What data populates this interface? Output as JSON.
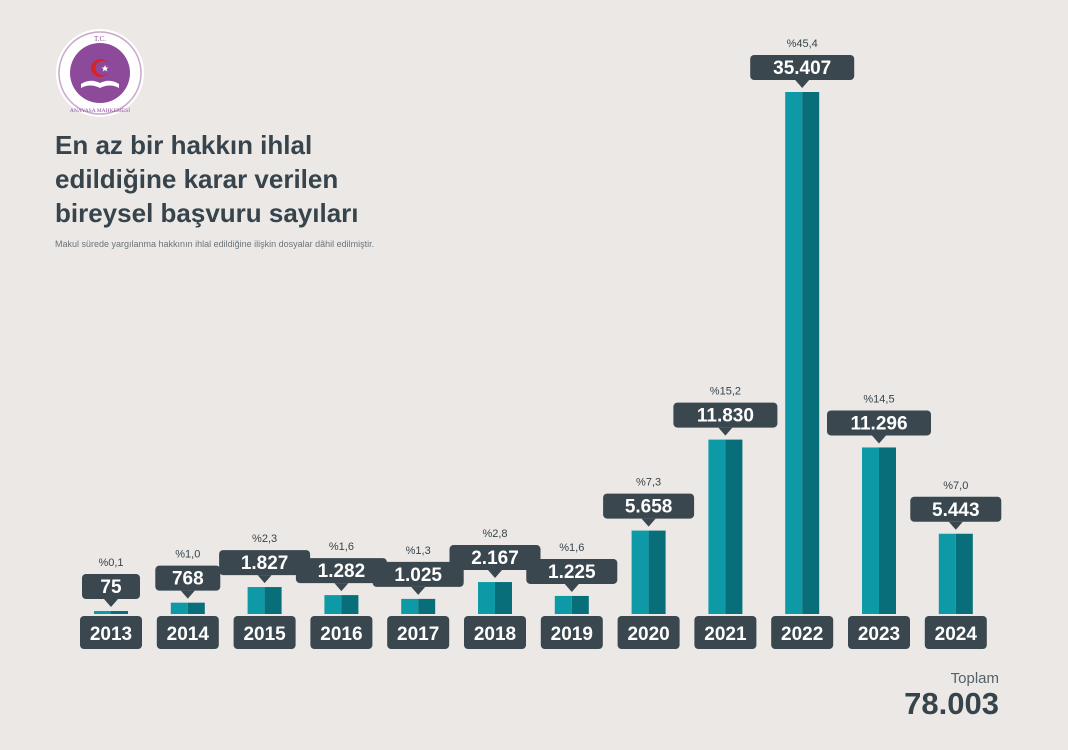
{
  "logo": {
    "icon": "anayasa-mahkemesi-seal",
    "text_top": "T.C.",
    "text_bottom": "ANAYASA MAHKEMESİ",
    "colors": {
      "ring": "#c9a7c9",
      "inner": "#8d4a9a",
      "book": "#ffffff",
      "crescent": "#d6232a"
    }
  },
  "title": "En az bir hakkın ihlal\nedildiğine karar verilen\nbireysel başvuru sayıları",
  "subtitle": "Makul sürede yargılanma hakkının ihlal edildiğine ilişkin dosyalar dâhil edilmiştir.",
  "total": {
    "label": "Toplam",
    "value": "78.003"
  },
  "colors": {
    "background": "#ebe8e6",
    "bar_light": "#0d9aa6",
    "bar_dark": "#086f7a",
    "label_box": "#3a474f",
    "label_text": "#ffffff",
    "pct_text": "#37444c"
  },
  "chart_data": {
    "type": "bar",
    "categories": [
      "2013",
      "2014",
      "2015",
      "2016",
      "2017",
      "2018",
      "2019",
      "2020",
      "2021",
      "2022",
      "2023",
      "2024"
    ],
    "values": [
      75,
      768,
      1827,
      1282,
      1025,
      2167,
      1225,
      5658,
      11830,
      35407,
      11296,
      5443
    ],
    "value_labels": [
      "75",
      "768",
      "1.827",
      "1.282",
      "1.025",
      "2.167",
      "1.225",
      "5.658",
      "11.830",
      "35.407",
      "11.296",
      "5.443"
    ],
    "percent_labels": [
      "%0,1",
      "%1,0",
      "%2,3",
      "%1,6",
      "%1,3",
      "%2,8",
      "%1,6",
      "%7,3",
      "%15,2",
      "%45,4",
      "%14,5",
      "%7,0"
    ],
    "title": "En az bir hakkın ihlal edildiğine karar verilen bireysel başvuru sayıları",
    "xlabel": "",
    "ylabel": "",
    "grid": false,
    "legend": "none"
  }
}
